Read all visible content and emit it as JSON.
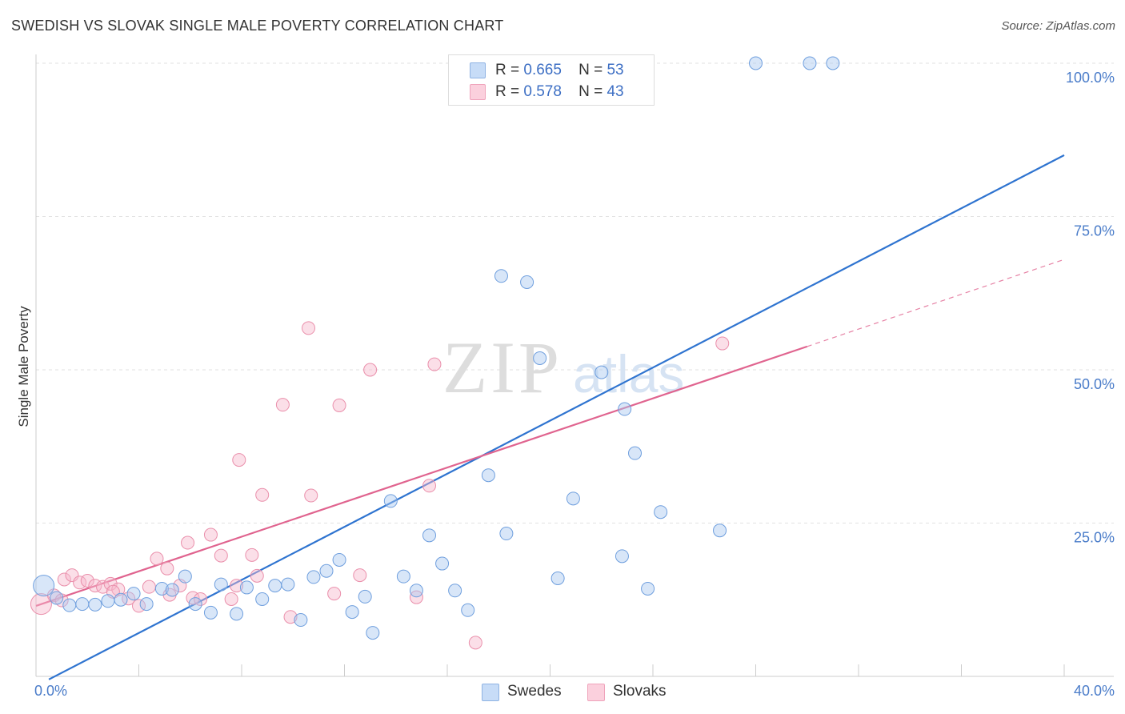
{
  "header": {
    "title": "SWEDISH VS SLOVAK SINGLE MALE POVERTY CORRELATION CHART",
    "source": "Source: ZipAtlas.com"
  },
  "watermark": {
    "zip": "ZIP",
    "atlas": "atlas"
  },
  "legend": {
    "rows": [
      {
        "r_label": "R =",
        "r_value": "0.665",
        "n_label": "N =",
        "n_value": "53",
        "color": "#a9c8f0"
      },
      {
        "r_label": "R =",
        "r_value": "0.578",
        "n_label": "N =",
        "n_value": "43",
        "color": "#f7b9cc"
      }
    ]
  },
  "bottom_legend": {
    "swedes": "Swedes",
    "slovaks": "Slovaks"
  },
  "chart_data": {
    "type": "scatter",
    "title": "SWEDISH VS SLOVAK SINGLE MALE POVERTY CORRELATION CHART",
    "xlabel": "",
    "ylabel": "Single Male Poverty",
    "xlim": [
      0,
      40
    ],
    "ylim": [
      0,
      100
    ],
    "x_tick_labels": [
      "0.0%",
      "40.0%"
    ],
    "y_tick_labels": [
      "100.0%",
      "75.0%",
      "50.0%",
      "25.0%"
    ],
    "y_ticks": [
      100,
      75,
      50,
      25
    ],
    "grid": true,
    "legend_position": "top-center",
    "series": [
      {
        "name": "Swedes",
        "color": "#a9c8f0",
        "stroke": "#6f9fde",
        "line_color": "#2f74d0",
        "trend": {
          "x": [
            0.5,
            40.0
          ],
          "y": [
            -0.5,
            85.0
          ]
        },
        "points": [
          {
            "x": 0.3,
            "y": 14.8,
            "big": true
          },
          {
            "x": 0.8,
            "y": 12.8
          },
          {
            "x": 1.3,
            "y": 11.6
          },
          {
            "x": 1.8,
            "y": 11.8
          },
          {
            "x": 2.3,
            "y": 11.7
          },
          {
            "x": 2.8,
            "y": 12.3
          },
          {
            "x": 3.3,
            "y": 12.5
          },
          {
            "x": 3.8,
            "y": 13.5
          },
          {
            "x": 4.3,
            "y": 11.8
          },
          {
            "x": 4.9,
            "y": 14.3
          },
          {
            "x": 5.3,
            "y": 14.1
          },
          {
            "x": 5.8,
            "y": 16.3
          },
          {
            "x": 6.2,
            "y": 11.8
          },
          {
            "x": 6.8,
            "y": 10.4
          },
          {
            "x": 7.2,
            "y": 15.0
          },
          {
            "x": 7.8,
            "y": 10.2
          },
          {
            "x": 8.2,
            "y": 14.5
          },
          {
            "x": 8.8,
            "y": 12.6
          },
          {
            "x": 9.3,
            "y": 14.8
          },
          {
            "x": 9.8,
            "y": 15.0
          },
          {
            "x": 10.3,
            "y": 9.2
          },
          {
            "x": 10.8,
            "y": 16.2
          },
          {
            "x": 11.3,
            "y": 17.2
          },
          {
            "x": 11.8,
            "y": 19.0
          },
          {
            "x": 12.3,
            "y": 10.5
          },
          {
            "x": 12.8,
            "y": 13.0
          },
          {
            "x": 13.1,
            "y": 7.1
          },
          {
            "x": 13.8,
            "y": 28.6
          },
          {
            "x": 14.3,
            "y": 16.3
          },
          {
            "x": 14.8,
            "y": 14.0
          },
          {
            "x": 15.3,
            "y": 23.0
          },
          {
            "x": 15.8,
            "y": 18.4
          },
          {
            "x": 16.3,
            "y": 14.0
          },
          {
            "x": 16.8,
            "y": 10.8
          },
          {
            "x": 17.6,
            "y": 32.8
          },
          {
            "x": 18.3,
            "y": 23.3
          },
          {
            "x": 18.1,
            "y": 65.3
          },
          {
            "x": 19.1,
            "y": 64.3
          },
          {
            "x": 19.6,
            "y": 51.9
          },
          {
            "x": 20.1,
            "y": 100.0
          },
          {
            "x": 20.3,
            "y": 16.0
          },
          {
            "x": 20.9,
            "y": 29.0
          },
          {
            "x": 22.0,
            "y": 49.6
          },
          {
            "x": 22.8,
            "y": 19.6
          },
          {
            "x": 22.9,
            "y": 43.6
          },
          {
            "x": 23.8,
            "y": 14.3
          },
          {
            "x": 23.3,
            "y": 36.4
          },
          {
            "x": 24.3,
            "y": 26.8
          },
          {
            "x": 26.6,
            "y": 23.8
          },
          {
            "x": 28.0,
            "y": 100.0
          },
          {
            "x": 30.1,
            "y": 100.0
          },
          {
            "x": 31.0,
            "y": 100.0
          },
          {
            "x": 23.1,
            "y": 100.0
          }
        ]
      },
      {
        "name": "Slovaks",
        "color": "#f7b9cc",
        "stroke": "#ea8fab",
        "line_color": "#e0648f",
        "trend": {
          "x": [
            0.0,
            30.0
          ],
          "y": [
            11.5,
            53.8
          ]
        },
        "trend_dashed": {
          "x": [
            30.0,
            40.0
          ],
          "y": [
            53.8,
            68.0
          ]
        },
        "points": [
          {
            "x": 0.2,
            "y": 11.8,
            "big": true
          },
          {
            "x": 0.7,
            "y": 13.2
          },
          {
            "x": 1.1,
            "y": 15.8
          },
          {
            "x": 1.4,
            "y": 16.5
          },
          {
            "x": 1.7,
            "y": 15.3
          },
          {
            "x": 2.0,
            "y": 15.6
          },
          {
            "x": 2.3,
            "y": 14.8
          },
          {
            "x": 2.6,
            "y": 14.6
          },
          {
            "x": 2.9,
            "y": 15.1
          },
          {
            "x": 3.2,
            "y": 14.2
          },
          {
            "x": 3.6,
            "y": 12.7
          },
          {
            "x": 4.0,
            "y": 11.5
          },
          {
            "x": 4.4,
            "y": 14.6
          },
          {
            "x": 4.7,
            "y": 19.2
          },
          {
            "x": 5.1,
            "y": 17.6
          },
          {
            "x": 5.2,
            "y": 13.3
          },
          {
            "x": 5.6,
            "y": 14.8
          },
          {
            "x": 5.9,
            "y": 21.8
          },
          {
            "x": 6.1,
            "y": 12.8
          },
          {
            "x": 6.4,
            "y": 12.6
          },
          {
            "x": 6.8,
            "y": 23.1
          },
          {
            "x": 7.2,
            "y": 19.7
          },
          {
            "x": 7.6,
            "y": 12.6
          },
          {
            "x": 7.8,
            "y": 14.8
          },
          {
            "x": 7.9,
            "y": 35.3
          },
          {
            "x": 8.4,
            "y": 19.8
          },
          {
            "x": 8.6,
            "y": 16.4
          },
          {
            "x": 8.8,
            "y": 29.6
          },
          {
            "x": 9.6,
            "y": 44.3
          },
          {
            "x": 9.9,
            "y": 9.7
          },
          {
            "x": 10.6,
            "y": 56.8
          },
          {
            "x": 10.7,
            "y": 29.5
          },
          {
            "x": 11.6,
            "y": 13.5
          },
          {
            "x": 11.8,
            "y": 44.2
          },
          {
            "x": 12.6,
            "y": 16.5
          },
          {
            "x": 13.0,
            "y": 50.0
          },
          {
            "x": 14.8,
            "y": 12.9
          },
          {
            "x": 15.3,
            "y": 31.1
          },
          {
            "x": 15.5,
            "y": 50.9
          },
          {
            "x": 17.1,
            "y": 5.5
          },
          {
            "x": 26.7,
            "y": 54.3
          },
          {
            "x": 1.0,
            "y": 12.4
          },
          {
            "x": 3.0,
            "y": 13.8
          }
        ]
      }
    ]
  }
}
